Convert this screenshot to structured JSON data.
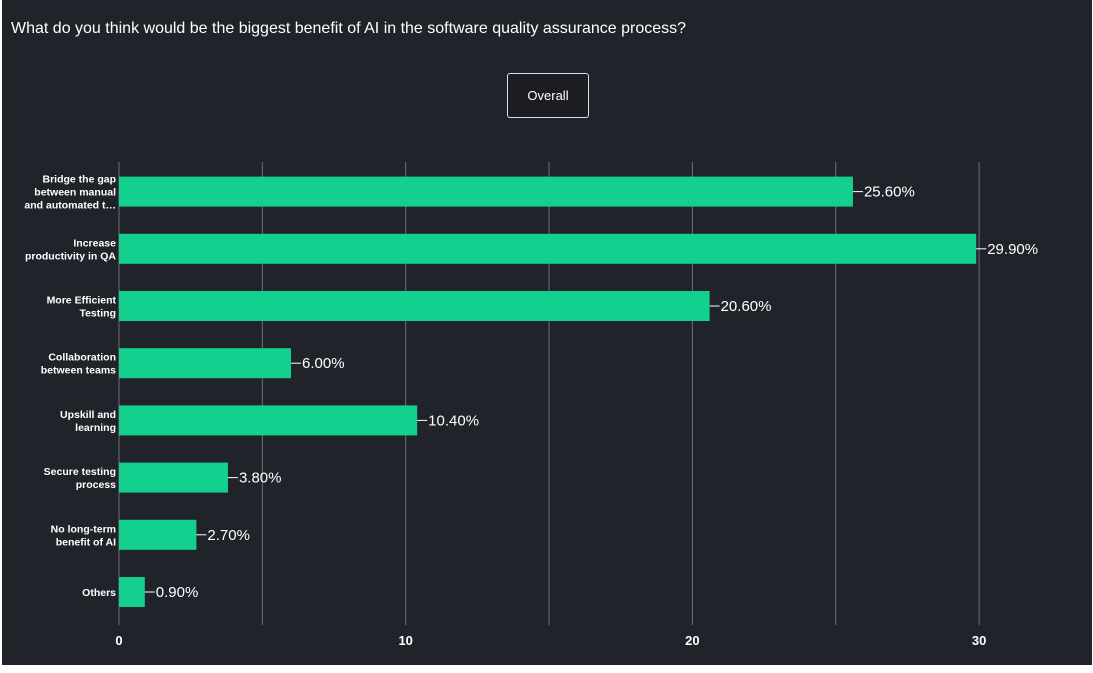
{
  "question": "What do you think would be the biggest benefit of AI in the software quality assurance process?",
  "filter_button": {
    "label": "Overall"
  },
  "colors": {
    "background": "#20232a",
    "bar": "#14d08f",
    "gridline": "#6b6f78",
    "text": "#ffffff"
  },
  "chart_data": {
    "type": "bar",
    "orientation": "horizontal",
    "categories": [
      [
        "Bridge the gap",
        "between manual",
        "and automated t…"
      ],
      [
        "Increase",
        "productivity in QA"
      ],
      [
        "More Efficient",
        "Testing"
      ],
      [
        "Collaboration",
        "between teams"
      ],
      [
        "Upskill and",
        "learning"
      ],
      [
        "Secure testing",
        "process"
      ],
      [
        "No long-term",
        "benefit of AI"
      ],
      [
        "Others"
      ]
    ],
    "values": [
      25.6,
      29.9,
      20.6,
      6.0,
      10.4,
      3.8,
      2.7,
      0.9
    ],
    "data_labels": [
      "25.60%",
      "29.90%",
      "20.60%",
      "6.00%",
      "10.40%",
      "3.80%",
      "2.70%",
      "0.90%"
    ],
    "xticks": [
      0,
      10,
      20,
      30
    ],
    "xtick_labels": [
      "0",
      "10",
      "20",
      "30"
    ],
    "xlim": [
      0,
      33.5
    ],
    "grid": true,
    "title": "",
    "xlabel": "",
    "ylabel": ""
  }
}
